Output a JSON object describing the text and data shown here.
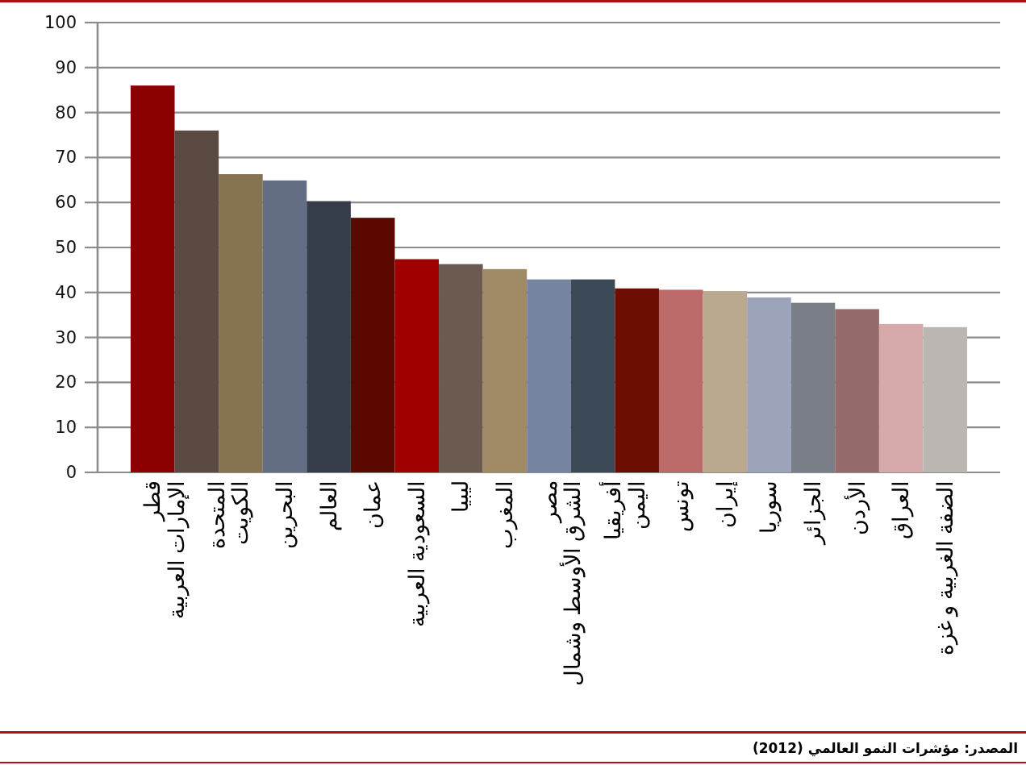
{
  "chart_data": {
    "type": "bar",
    "categories": [
      "قطر",
      "الإمارات العربية\nالمتحدة",
      "الكويت",
      "البحرين",
      "العالم",
      "عمان",
      "السعودية العربية",
      "ليبيا",
      "المغرب",
      "مصر",
      "الشرق الأوسط وشمال\nأفريقيا",
      "اليمن",
      "تونس",
      "إيران",
      "سوريا",
      "الجزائر",
      "الأردن",
      "العراق",
      "الضفة الغربية و غزة"
    ],
    "values": [
      86,
      76,
      66.3,
      64.9,
      60.3,
      56.6,
      47.4,
      46.3,
      45.2,
      42.9,
      42.9,
      40.9,
      40.6,
      40.3,
      38.9,
      37.7,
      36.3,
      33,
      32.3
    ],
    "colors": [
      "#8b0000",
      "#5a4a42",
      "#857352",
      "#636d84",
      "#353c4a",
      "#5a0800",
      "#a00000",
      "#6b5a50",
      "#a08a65",
      "#7585a0",
      "#3c4a58",
      "#6b0d00",
      "#bc6a6a",
      "#baa98e",
      "#9ca4bb",
      "#7a7e86",
      "#946a6a",
      "#d6aaaa",
      "#bcb6b3"
    ],
    "ylim": [
      0,
      100
    ],
    "yticks": [
      0,
      10,
      20,
      30,
      40,
      50,
      60,
      70,
      80,
      90,
      100
    ],
    "grid": "y",
    "annotations": [
      "المصدر: مؤشرات النمو العالمي (2012)"
    ]
  }
}
